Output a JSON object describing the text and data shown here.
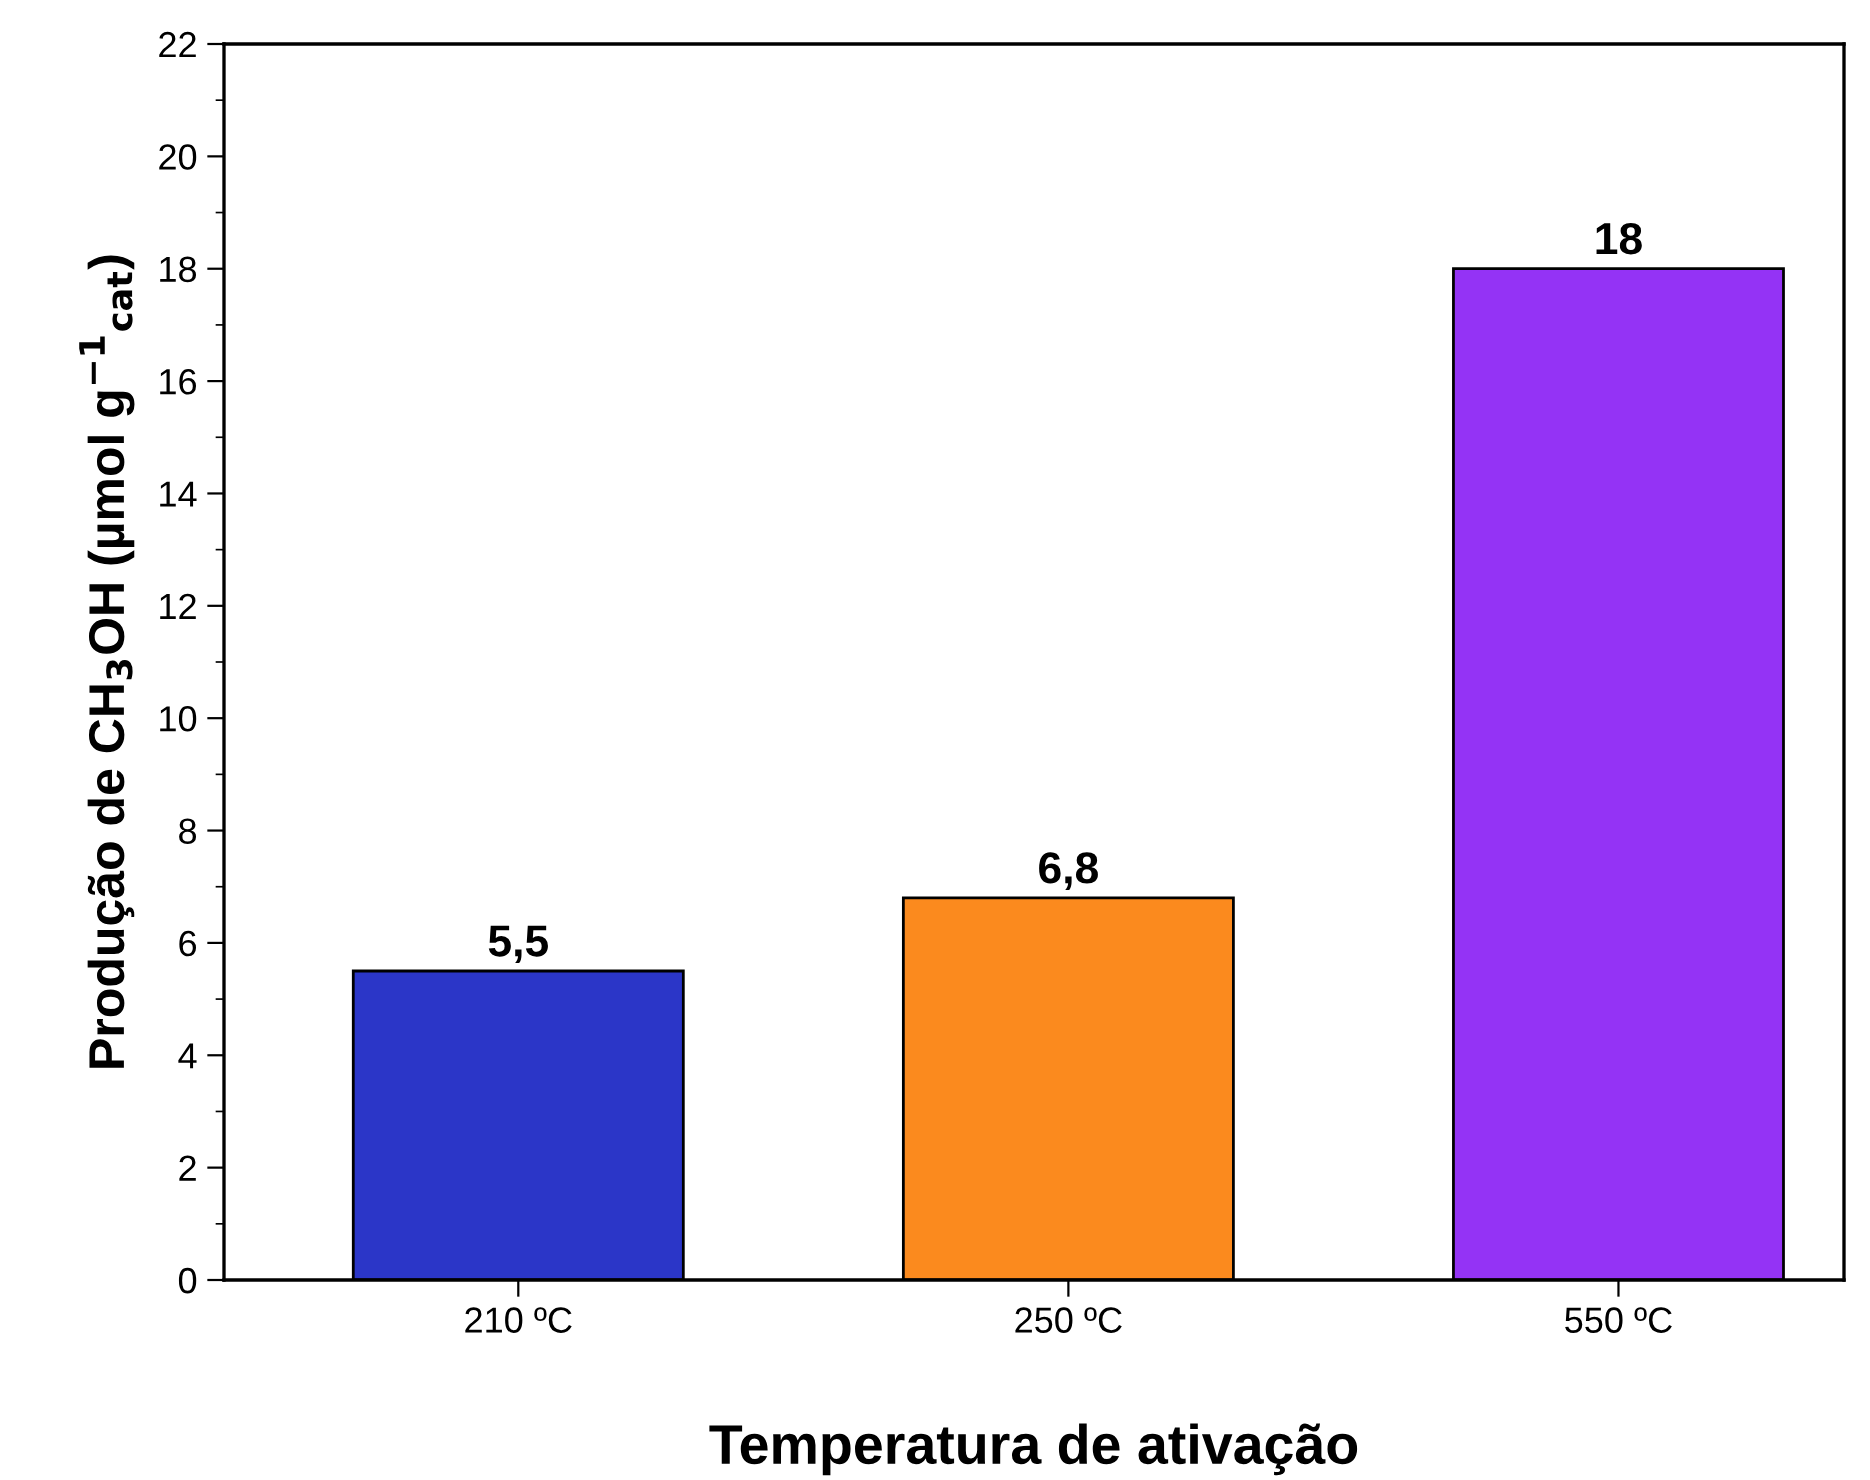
{
  "chart_data": {
    "type": "bar",
    "xlabel": "Temperatura de ativação",
    "ylabel": "Produção de CH$_{3}$OH (µmol g$^{−1}$$_{cat}$)",
    "categories": [
      "210 ºC",
      "250 ºC",
      "550 ºC"
    ],
    "values": [
      5.5,
      6.8,
      18
    ],
    "colors": [
      "#2b36c8",
      "#fb8a1e",
      "#9433f5"
    ],
    "value_labels": [
      "5,5",
      "6,8",
      "18"
    ],
    "ylim": [
      0,
      22
    ],
    "yticks": [
      0,
      2,
      4,
      6,
      8,
      10,
      12,
      14,
      16,
      18,
      20,
      22
    ],
    "grid": false,
    "legend": false
  }
}
